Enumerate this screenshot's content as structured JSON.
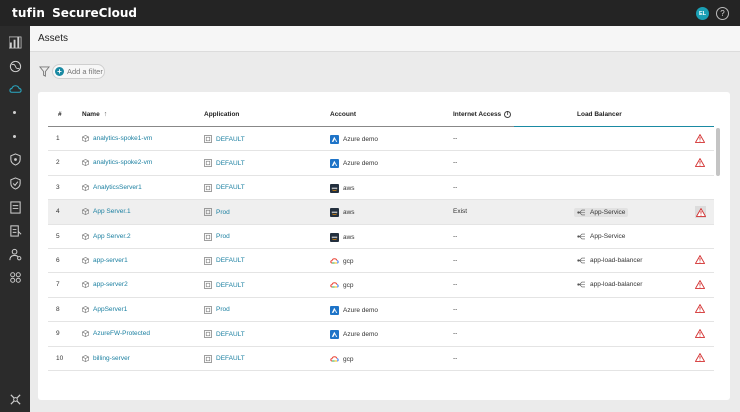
{
  "header": {
    "logo": "tufin",
    "product": "SecureCloud",
    "avatar_initials": "EL",
    "help_label": "?"
  },
  "sidebar": {
    "icons": [
      "dashboard-icon",
      "globe-icon",
      "cloud-icon",
      "shield-icon",
      "shield-check-icon",
      "document-icon",
      "clipboard-icon",
      "user-gear-icon",
      "modules-icon",
      "settings-icon"
    ]
  },
  "page": {
    "title": "Assets",
    "add_filter_label": "Add a filter"
  },
  "table": {
    "headers": {
      "num": "#",
      "name": "Name",
      "application": "Application",
      "account": "Account",
      "internet_access": "Internet Access",
      "load_balancer": "Load Balancer"
    },
    "rows": [
      {
        "num": "1",
        "name": "analytics-spoke1-vm",
        "app": "DEFAULT",
        "cloud": "azure",
        "account": "Azure demo",
        "internet": "--",
        "lb": "",
        "warn": true
      },
      {
        "num": "2",
        "name": "analytics-spoke2-vm",
        "app": "DEFAULT",
        "cloud": "azure",
        "account": "Azure demo",
        "internet": "--",
        "lb": "",
        "warn": true
      },
      {
        "num": "3",
        "name": "AnalyticsServer1",
        "app": "DEFAULT",
        "cloud": "aws",
        "account": "aws",
        "internet": "--",
        "lb": "",
        "warn": false
      },
      {
        "num": "4",
        "name": "App Server.1",
        "app": "Prod",
        "cloud": "aws",
        "account": "aws",
        "internet": "Exist",
        "lb": "App-Service",
        "warn": true
      },
      {
        "num": "5",
        "name": "App Server.2",
        "app": "Prod",
        "cloud": "aws",
        "account": "aws",
        "internet": "--",
        "lb": "App-Service",
        "warn": false
      },
      {
        "num": "6",
        "name": "app-server1",
        "app": "DEFAULT",
        "cloud": "gcp",
        "account": "gcp",
        "internet": "--",
        "lb": "app-load-balancer",
        "warn": true
      },
      {
        "num": "7",
        "name": "app-server2",
        "app": "DEFAULT",
        "cloud": "gcp",
        "account": "gcp",
        "internet": "--",
        "lb": "app-load-balancer",
        "warn": true
      },
      {
        "num": "8",
        "name": "AppServer1",
        "app": "Prod",
        "cloud": "azure",
        "account": "Azure demo",
        "internet": "--",
        "lb": "",
        "warn": true
      },
      {
        "num": "9",
        "name": "AzureFW-Protected",
        "app": "DEFAULT",
        "cloud": "azure",
        "account": "Azure demo",
        "internet": "--",
        "lb": "",
        "warn": true
      },
      {
        "num": "10",
        "name": "billing-server",
        "app": "DEFAULT",
        "cloud": "gcp",
        "account": "gcp",
        "internet": "--",
        "lb": "",
        "warn": true
      }
    ],
    "highlighted_row": 3
  },
  "colors": {
    "topbar": "#242424",
    "sidebar": "#2b2b2b",
    "link": "#1a7fa0",
    "accent": "#1a8aa3",
    "warning": "#d32f2f"
  }
}
